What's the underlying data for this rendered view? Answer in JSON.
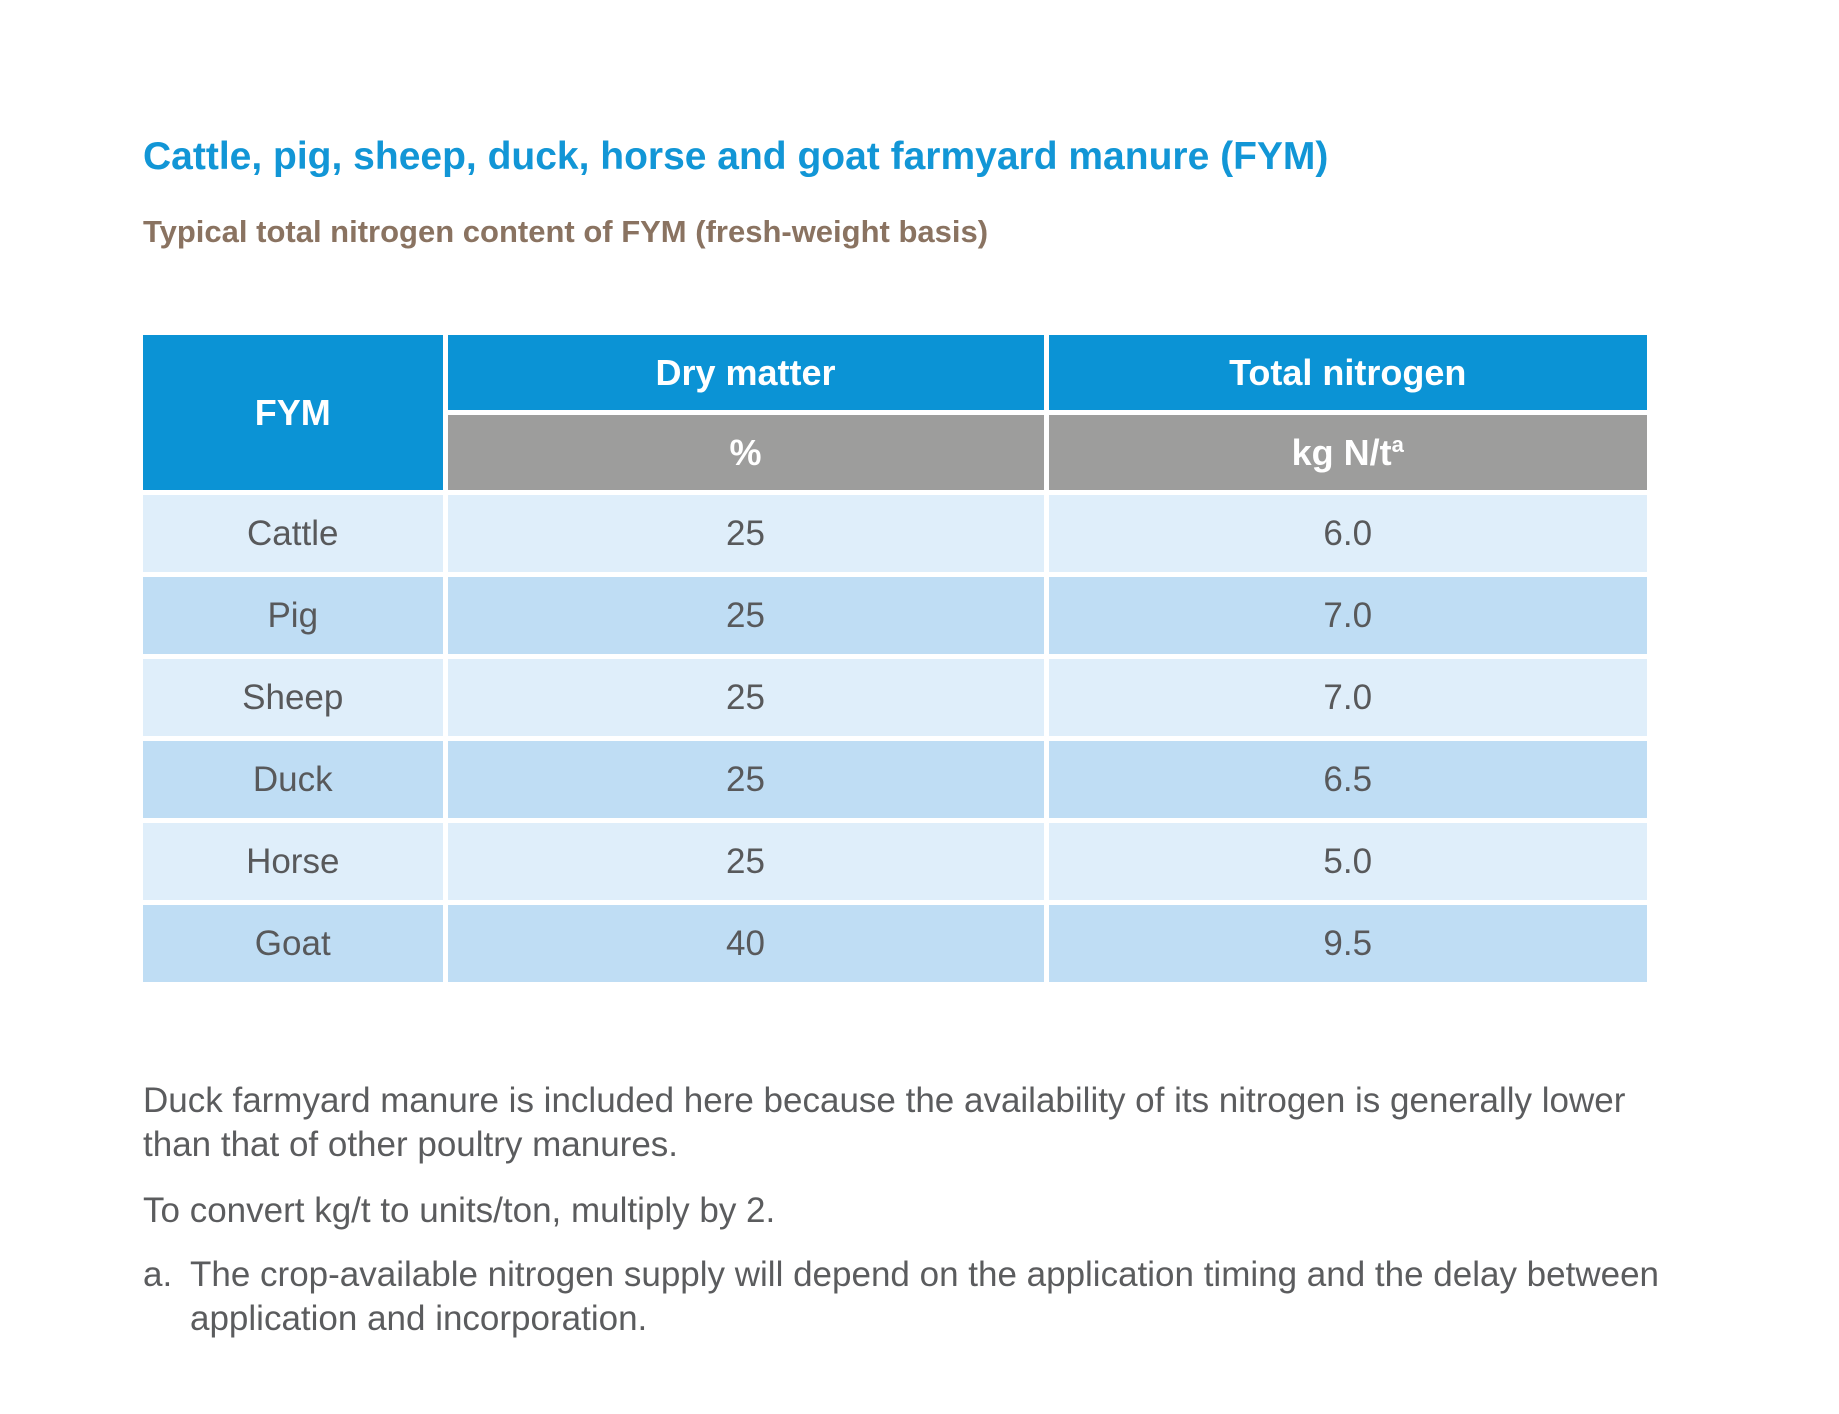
{
  "page": {
    "title": "Cattle, pig, sheep, duck, horse and goat farmyard manure (FYM)",
    "subtitle": "Typical total nitrogen content of FYM (fresh-weight basis)"
  },
  "table": {
    "col1_header": "FYM",
    "col2_header": "Dry matter",
    "col3_header": "Total nitrogen",
    "col2_unit": "%",
    "col3_unit": "kg N/t",
    "col3_unit_sup": "a",
    "rows": [
      {
        "fym": "Cattle",
        "dry_matter": "25",
        "total_nitrogen": "6.0"
      },
      {
        "fym": "Pig",
        "dry_matter": "25",
        "total_nitrogen": "7.0"
      },
      {
        "fym": "Sheep",
        "dry_matter": "25",
        "total_nitrogen": "7.0"
      },
      {
        "fym": "Duck",
        "dry_matter": "25",
        "total_nitrogen": "6.5"
      },
      {
        "fym": "Horse",
        "dry_matter": "25",
        "total_nitrogen": "5.0"
      },
      {
        "fym": "Goat",
        "dry_matter": "40",
        "total_nitrogen": "9.5"
      }
    ]
  },
  "notes": {
    "duck_note": "Duck farmyard manure is included here because the availability of its nitrogen is generally lower\nthan that of other poultry manures.",
    "conversion_note": "To convert kg/t to units/ton, multiply by 2.",
    "footnote_label": "a.",
    "footnote_text": "The crop-available nitrogen supply will depend on the application timing and the delay between\napplication and incorporation."
  },
  "colors": {
    "title_blue": "#1296d6",
    "subtitle_brown": "#8a7361",
    "header_blue": "#0b93d5",
    "header_gray": "#9d9d9c",
    "row_light_blue": "#dfeefa",
    "row_dark_blue": "#bfddf4",
    "body_text_gray": "#58595b"
  },
  "chart_data": {
    "type": "table",
    "title": "Typical total nitrogen content of FYM (fresh-weight basis)",
    "columns": [
      "FYM",
      "Dry matter %",
      "Total nitrogen kg N/t"
    ],
    "categories": [
      "Cattle",
      "Pig",
      "Sheep",
      "Duck",
      "Horse",
      "Goat"
    ],
    "series": [
      {
        "name": "Dry matter %",
        "values": [
          25,
          25,
          25,
          25,
          25,
          40
        ]
      },
      {
        "name": "Total nitrogen kg N/t",
        "values": [
          6.0,
          7.0,
          7.0,
          6.5,
          5.0,
          9.5
        ]
      }
    ]
  }
}
